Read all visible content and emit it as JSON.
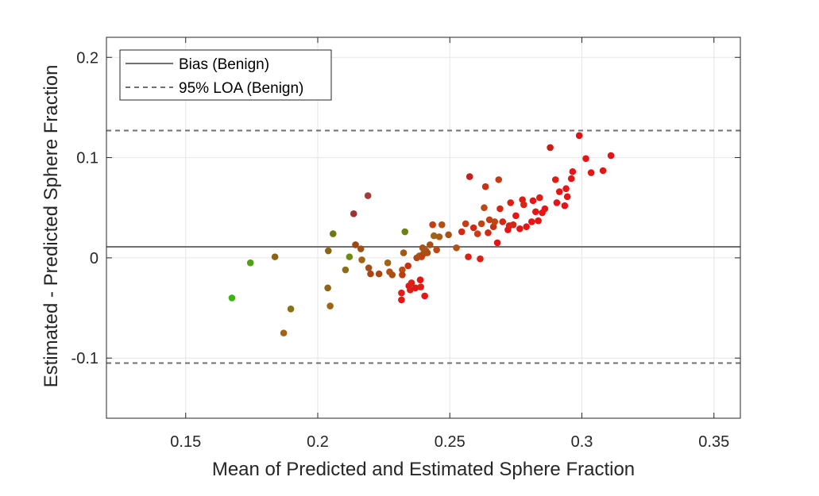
{
  "chart_data": {
    "type": "scatter",
    "xlabel": "Mean of Predicted and Estimated Sphere Fraction",
    "ylabel": "Estimated - Predicted Sphere Fraction",
    "xlim": [
      0.12,
      0.36
    ],
    "ylim": [
      -0.16,
      0.22
    ],
    "xticks": [
      0.15,
      0.2,
      0.25,
      0.3,
      0.35
    ],
    "xtick_labels": [
      "0.15",
      "0.2",
      "0.25",
      "0.3",
      "0.35"
    ],
    "yticks": [
      -0.1,
      0,
      0.1,
      0.2
    ],
    "ytick_labels": [
      "-0.1",
      "0",
      "0.1",
      "0.2"
    ],
    "grid": true,
    "legend_position": "top-left",
    "bias": 0.011,
    "loa": [
      -0.105,
      0.127
    ],
    "legend": {
      "bias_label": "Bias (Benign)",
      "loa_label": "95% LOA (Benign)"
    },
    "colors": {
      "line": "#707070",
      "low": "#3cb414",
      "mid": "#96781e",
      "high": "#e61414",
      "dark": "#8c3232"
    },
    "points": [
      {
        "x": 0.1675,
        "y": -0.04,
        "c": "#3cb414"
      },
      {
        "x": 0.1745,
        "y": -0.005,
        "c": "#50a014"
      },
      {
        "x": 0.1838,
        "y": 0.001,
        "c": "#8c6414"
      },
      {
        "x": 0.1871,
        "y": -0.075,
        "c": "#a06414"
      },
      {
        "x": 0.1898,
        "y": -0.051,
        "c": "#8c6e14"
      },
      {
        "x": 0.2038,
        "y": -0.03,
        "c": "#8c6414"
      },
      {
        "x": 0.204,
        "y": 0.007,
        "c": "#8c6414"
      },
      {
        "x": 0.2047,
        "y": -0.048,
        "c": "#a06414"
      },
      {
        "x": 0.2058,
        "y": 0.024,
        "c": "#6e7814"
      },
      {
        "x": 0.2105,
        "y": -0.012,
        "c": "#8c6e14"
      },
      {
        "x": 0.212,
        "y": 0.001,
        "c": "#6e8c14"
      },
      {
        "x": 0.2136,
        "y": 0.044,
        "c": "#a03232"
      },
      {
        "x": 0.2143,
        "y": 0.013,
        "c": "#a04614"
      },
      {
        "x": 0.2163,
        "y": 0.009,
        "c": "#a05014"
      },
      {
        "x": 0.2167,
        "y": -0.002,
        "c": "#a06414"
      },
      {
        "x": 0.219,
        "y": 0.062,
        "c": "#a03c3c"
      },
      {
        "x": 0.2193,
        "y": -0.01,
        "c": "#a05014"
      },
      {
        "x": 0.22,
        "y": -0.016,
        "c": "#aa4614"
      },
      {
        "x": 0.2232,
        "y": -0.016,
        "c": "#aa4614"
      },
      {
        "x": 0.2265,
        "y": -0.005,
        "c": "#a06414"
      },
      {
        "x": 0.2272,
        "y": -0.014,
        "c": "#b45014"
      },
      {
        "x": 0.2282,
        "y": -0.017,
        "c": "#aa5014"
      },
      {
        "x": 0.2317,
        "y": -0.042,
        "c": "#e61414"
      },
      {
        "x": 0.2317,
        "y": -0.035,
        "c": "#dc1e14"
      },
      {
        "x": 0.232,
        "y": -0.012,
        "c": "#b45014"
      },
      {
        "x": 0.232,
        "y": -0.017,
        "c": "#be3c14"
      },
      {
        "x": 0.2325,
        "y": 0.005,
        "c": "#a05a14"
      },
      {
        "x": 0.233,
        "y": 0.026,
        "c": "#6e8214"
      },
      {
        "x": 0.2342,
        "y": -0.008,
        "c": "#c83214"
      },
      {
        "x": 0.2345,
        "y": -0.028,
        "c": "#e61414"
      },
      {
        "x": 0.235,
        "y": -0.032,
        "c": "#dc1e14"
      },
      {
        "x": 0.2355,
        "y": -0.025,
        "c": "#dc1e14"
      },
      {
        "x": 0.237,
        "y": -0.03,
        "c": "#e61414"
      },
      {
        "x": 0.2375,
        "y": 0.0,
        "c": "#b44614"
      },
      {
        "x": 0.2385,
        "y": 0.002,
        "c": "#a05a14"
      },
      {
        "x": 0.2388,
        "y": -0.022,
        "c": "#e61414"
      },
      {
        "x": 0.239,
        "y": -0.029,
        "c": "#dc1e14"
      },
      {
        "x": 0.2393,
        "y": 0.001,
        "c": "#c83c14"
      },
      {
        "x": 0.2397,
        "y": 0.01,
        "c": "#aa5014"
      },
      {
        "x": 0.24,
        "y": 0.004,
        "c": "#b44614"
      },
      {
        "x": 0.2405,
        "y": -0.038,
        "c": "#e61414"
      },
      {
        "x": 0.241,
        "y": 0.007,
        "c": "#a05a14"
      },
      {
        "x": 0.2415,
        "y": 0.005,
        "c": "#aa5014"
      },
      {
        "x": 0.2425,
        "y": 0.013,
        "c": "#aa5014"
      },
      {
        "x": 0.2435,
        "y": 0.033,
        "c": "#c83c14"
      },
      {
        "x": 0.244,
        "y": 0.022,
        "c": "#a06414"
      },
      {
        "x": 0.245,
        "y": 0.008,
        "c": "#be4614"
      },
      {
        "x": 0.246,
        "y": 0.021,
        "c": "#aa5a14"
      },
      {
        "x": 0.247,
        "y": 0.033,
        "c": "#b45014"
      },
      {
        "x": 0.2495,
        "y": 0.023,
        "c": "#aa5014"
      },
      {
        "x": 0.2525,
        "y": 0.01,
        "c": "#b45014"
      },
      {
        "x": 0.2545,
        "y": 0.026,
        "c": "#d22814"
      },
      {
        "x": 0.256,
        "y": 0.034,
        "c": "#c83c14"
      },
      {
        "x": 0.257,
        "y": 0.001,
        "c": "#dc1e14"
      },
      {
        "x": 0.2575,
        "y": 0.081,
        "c": "#c81e1e"
      },
      {
        "x": 0.259,
        "y": 0.03,
        "c": "#d22814"
      },
      {
        "x": 0.2605,
        "y": 0.024,
        "c": "#c83c14"
      },
      {
        "x": 0.2615,
        "y": -0.001,
        "c": "#dc1e14"
      },
      {
        "x": 0.262,
        "y": 0.034,
        "c": "#be4614"
      },
      {
        "x": 0.263,
        "y": 0.05,
        "c": "#be4614"
      },
      {
        "x": 0.2635,
        "y": 0.071,
        "c": "#c83214"
      },
      {
        "x": 0.2645,
        "y": 0.025,
        "c": "#d22814"
      },
      {
        "x": 0.265,
        "y": 0.038,
        "c": "#c83c14"
      },
      {
        "x": 0.2665,
        "y": 0.031,
        "c": "#c83214"
      },
      {
        "x": 0.267,
        "y": 0.036,
        "c": "#be4614"
      },
      {
        "x": 0.268,
        "y": 0.015,
        "c": "#e61414"
      },
      {
        "x": 0.2685,
        "y": 0.078,
        "c": "#c83c14"
      },
      {
        "x": 0.269,
        "y": 0.049,
        "c": "#d22814"
      },
      {
        "x": 0.27,
        "y": 0.036,
        "c": "#d22814"
      },
      {
        "x": 0.272,
        "y": 0.028,
        "c": "#e61414"
      },
      {
        "x": 0.2725,
        "y": 0.032,
        "c": "#dc1e14"
      },
      {
        "x": 0.273,
        "y": 0.055,
        "c": "#dc1e14"
      },
      {
        "x": 0.274,
        "y": 0.033,
        "c": "#d22814"
      },
      {
        "x": 0.275,
        "y": 0.042,
        "c": "#e61414"
      },
      {
        "x": 0.2765,
        "y": 0.029,
        "c": "#e61414"
      },
      {
        "x": 0.2775,
        "y": 0.058,
        "c": "#dc1e14"
      },
      {
        "x": 0.278,
        "y": 0.053,
        "c": "#d22814"
      },
      {
        "x": 0.279,
        "y": 0.031,
        "c": "#e61414"
      },
      {
        "x": 0.281,
        "y": 0.036,
        "c": "#e61414"
      },
      {
        "x": 0.2815,
        "y": 0.057,
        "c": "#e61414"
      },
      {
        "x": 0.2825,
        "y": 0.046,
        "c": "#e61414"
      },
      {
        "x": 0.2835,
        "y": 0.037,
        "c": "#e61414"
      },
      {
        "x": 0.284,
        "y": 0.06,
        "c": "#dc1e14"
      },
      {
        "x": 0.285,
        "y": 0.045,
        "c": "#e61414"
      },
      {
        "x": 0.286,
        "y": 0.049,
        "c": "#e61414"
      },
      {
        "x": 0.288,
        "y": 0.11,
        "c": "#c81e14"
      },
      {
        "x": 0.29,
        "y": 0.078,
        "c": "#dc1e14"
      },
      {
        "x": 0.2905,
        "y": 0.055,
        "c": "#e61414"
      },
      {
        "x": 0.2915,
        "y": 0.066,
        "c": "#e61414"
      },
      {
        "x": 0.2935,
        "y": 0.052,
        "c": "#e61414"
      },
      {
        "x": 0.294,
        "y": 0.069,
        "c": "#e61414"
      },
      {
        "x": 0.2945,
        "y": 0.061,
        "c": "#e61414"
      },
      {
        "x": 0.296,
        "y": 0.079,
        "c": "#e61414"
      },
      {
        "x": 0.2965,
        "y": 0.086,
        "c": "#e61414"
      },
      {
        "x": 0.299,
        "y": 0.122,
        "c": "#dc1414"
      },
      {
        "x": 0.3015,
        "y": 0.099,
        "c": "#e61414"
      },
      {
        "x": 0.3035,
        "y": 0.085,
        "c": "#e61414"
      },
      {
        "x": 0.308,
        "y": 0.087,
        "c": "#e61414"
      },
      {
        "x": 0.311,
        "y": 0.102,
        "c": "#e61414"
      }
    ]
  }
}
